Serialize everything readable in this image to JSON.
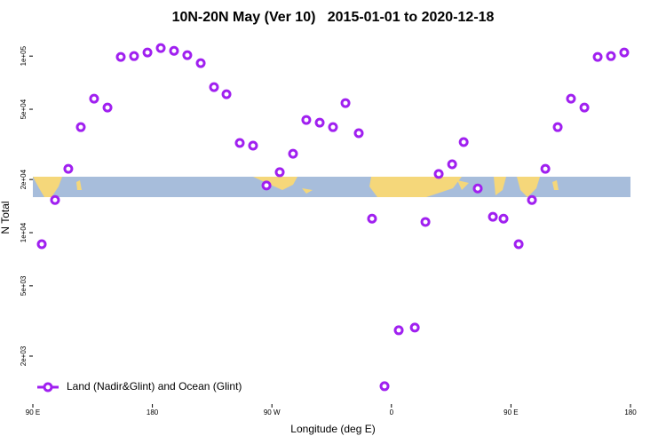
{
  "chart_data": {
    "type": "scatter",
    "title": "10N-20N May (Ver 10)   2015-01-01 to 2020-12-18",
    "x_label": "Longitude (deg E)",
    "y_label": "N Total",
    "log_y": true,
    "legend_position": "bottom-left",
    "xlim": [
      90,
      540
    ],
    "xticks": [
      {
        "value": 90,
        "label": "90 E"
      },
      180,
      {
        "value": 270,
        "label": "90 W"
      },
      {
        "value": 360,
        "label": "0"
      },
      {
        "value": 450,
        "label": "90 E"
      },
      {
        "value": 540,
        "label": "180"
      }
    ],
    "ylim": [
      1070,
      137000
    ],
    "yticks": [
      {
        "value": 2000,
        "label": "2e+03"
      },
      {
        "value": 5000,
        "label": "5e+03"
      },
      {
        "value": 10000,
        "label": "1e+04"
      },
      {
        "value": 20000,
        "label": "2e+04"
      },
      {
        "value": 50000,
        "label": "5e+04"
      },
      {
        "value": 100000,
        "label": "1e+05"
      }
    ],
    "series": [
      {
        "name": "Land (Nadir&Glint) and Ocean (Glint)",
        "color": "#a020f0",
        "x": [
          96.7,
          106.7,
          116.7,
          126.1,
          136.1,
          146.2,
          156.2,
          166.2,
          176.3,
          186.3,
          196.3,
          206.3,
          216.4,
          226.4,
          235.8,
          245.8,
          255.8,
          265.9,
          275.9,
          285.9,
          295.9,
          306.0,
          316.0,
          325.4,
          335.4,
          345.4,
          354.8,
          365.5,
          377.6,
          385.6,
          395.6,
          405.7,
          414.4,
          425.0,
          436.4,
          444.4,
          455.8,
          465.8,
          475.9,
          485.2,
          495.2,
          505.3,
          515.3,
          525.3,
          535.3
        ],
        "values": [
          8600,
          15300,
          23000,
          39600,
          57400,
          51100,
          98900,
          100000,
          104800,
          111000,
          107100,
          101200,
          91200,
          66700,
          60800,
          32200,
          31100,
          18500,
          22000,
          28000,
          43500,
          42000,
          39600,
          54200,
          36600,
          12000,
          1350,
          2800,
          2900,
          11500,
          21500,
          24400,
          32600,
          17800,
          12300,
          12000,
          8600,
          15300,
          23000,
          39600,
          57400,
          51100,
          98900,
          100000,
          104800
        ]
      }
    ]
  }
}
